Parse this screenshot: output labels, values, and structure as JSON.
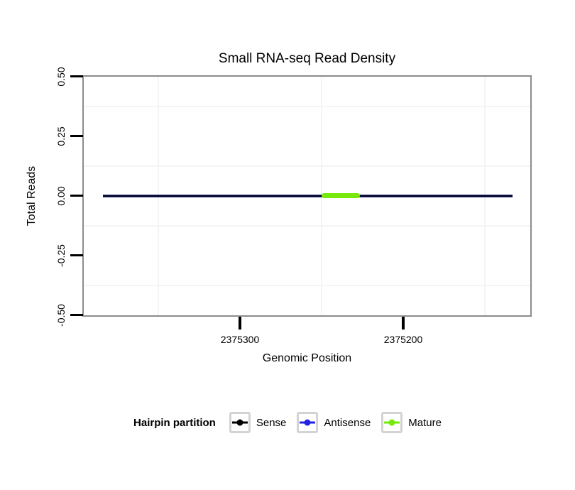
{
  "chart_data": {
    "type": "line",
    "title": "Small RNA-seq Read Density",
    "xlabel": "Genomic Position",
    "ylabel": "Total Reads",
    "x_axis": {
      "reversed": true,
      "range": [
        2375396,
        2375122
      ],
      "ticks": [
        2375300,
        2375200
      ],
      "tick_labels": [
        "2375300",
        "2375200"
      ],
      "minor_gridlines": [
        2375350,
        2375250,
        2375150
      ]
    },
    "y_axis": {
      "range": [
        -0.5,
        0.5
      ],
      "ticks": [
        0.5,
        0.25,
        0.0,
        -0.25,
        -0.5
      ],
      "tick_labels": [
        "0.50",
        "0.25",
        "0.00",
        "-0.25",
        "-0.50"
      ],
      "minor_gridlines": [
        0.375,
        0.125,
        -0.125,
        -0.375
      ]
    },
    "grid": "minor gridlines only, very faint",
    "legend_position": "bottom",
    "series": [
      {
        "name": "Sense",
        "color": "#000000",
        "y": 0,
        "x_start": 2375384,
        "x_end": 2375133,
        "style": "thin flat line at zero reads spanning hairpin"
      },
      {
        "name": "Antisense",
        "color": "#2222E6",
        "y": 0,
        "x_start": 2375384,
        "x_end": 2375133,
        "style": "overlaps sense line at zero (blue fringe visible)"
      },
      {
        "name": "Mature",
        "color": "#76E80A",
        "y": 0,
        "x_start": 2375249,
        "x_end": 2375227,
        "style": "thick rounded segment at zero"
      }
    ]
  },
  "legend": {
    "title": "Hairpin partition",
    "items": [
      {
        "label": "Sense",
        "color": "#000000"
      },
      {
        "label": "Antisense",
        "color": "#2222E6"
      },
      {
        "label": "Mature",
        "color": "#76E80A"
      }
    ]
  },
  "colors": {
    "panel_border": "#8c8c8c",
    "minor_gridline": "#f4f4f4",
    "legend_key_border": "#d3d3d3",
    "background": "#ffffff",
    "mature_green": "#76E80A",
    "antisense_blue": "#2222E6",
    "sense_black": "#000000"
  }
}
